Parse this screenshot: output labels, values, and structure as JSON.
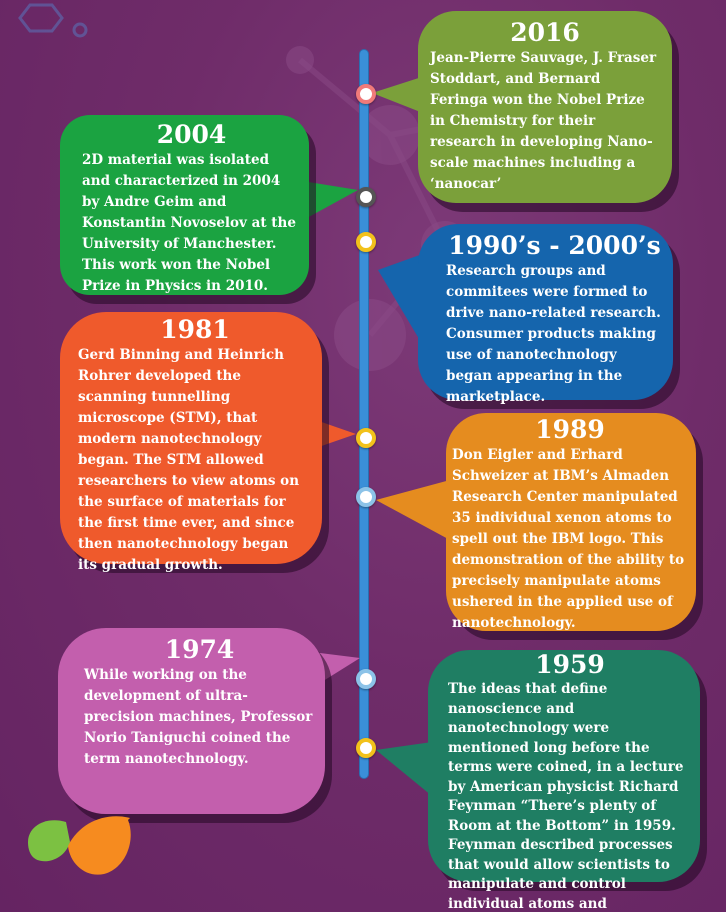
{
  "colors": {
    "background": "#6f2c69",
    "spine": "#3a8fd8",
    "y2016": "#7ba03a",
    "y2004": "#1ba341",
    "y1990s": "#1565ad",
    "y1981": "#ef5a2c",
    "y1989": "#e58c1f",
    "y1974": "#c35fad",
    "y1959": "#1f7e63"
  },
  "timeline": {
    "e2016": {
      "year": "2016",
      "text": "Jean-Pierre Sauvage, J. Fraser Stoddart, and Bernard Feringa won the Nobel Prize in Chemistry for their research in developing Nano-scale machines including a ‘nanocar’"
    },
    "e2004": {
      "year": "2004",
      "text": "2D material was isolated and characterized in 2004 by Andre Geim and Konstantin Novoselov at the University of Manchester. This work won the Nobel Prize in Physics in 2010."
    },
    "e1990s": {
      "year": "1990’s - 2000’s",
      "text": "Research groups and commitees were formed to drive nano-related research. Consumer products making use of nanotechnology began appearing in the marketplace."
    },
    "e1981": {
      "year": "1981",
      "text": "Gerd Binning and Heinrich Rohrer developed the scanning tunnelling microscope (STM), that modern nanotechnology began. The STM allowed researchers to view atoms on the surface of materials for the first time ever, and since then nanotechnology began its gradual growth."
    },
    "e1989": {
      "year": "1989",
      "text": "Don Eigler and Erhard Schweizer at IBM’s Almaden Research Center manipulated 35 individual xenon atoms to spell out the IBM logo. This demonstration of the ability to precisely manipulate atoms ushered in the applied use of nanotechnology."
    },
    "e1974": {
      "year": "1974",
      "text": "While working on the development of ultra-precision machines, Professor Norio Taniguchi coined the term nanotechnology."
    },
    "e1959": {
      "year": "1959",
      "text": "The ideas that define nanoscience and nanotechnology were mentioned long before the terms were coined, in a lecture by American physicist Richard Feynman “There’s plenty of Room at the Bottom” in 1959. Feynman described processes that would allow scientists to manipulate and control individual atoms and molecules."
    }
  }
}
